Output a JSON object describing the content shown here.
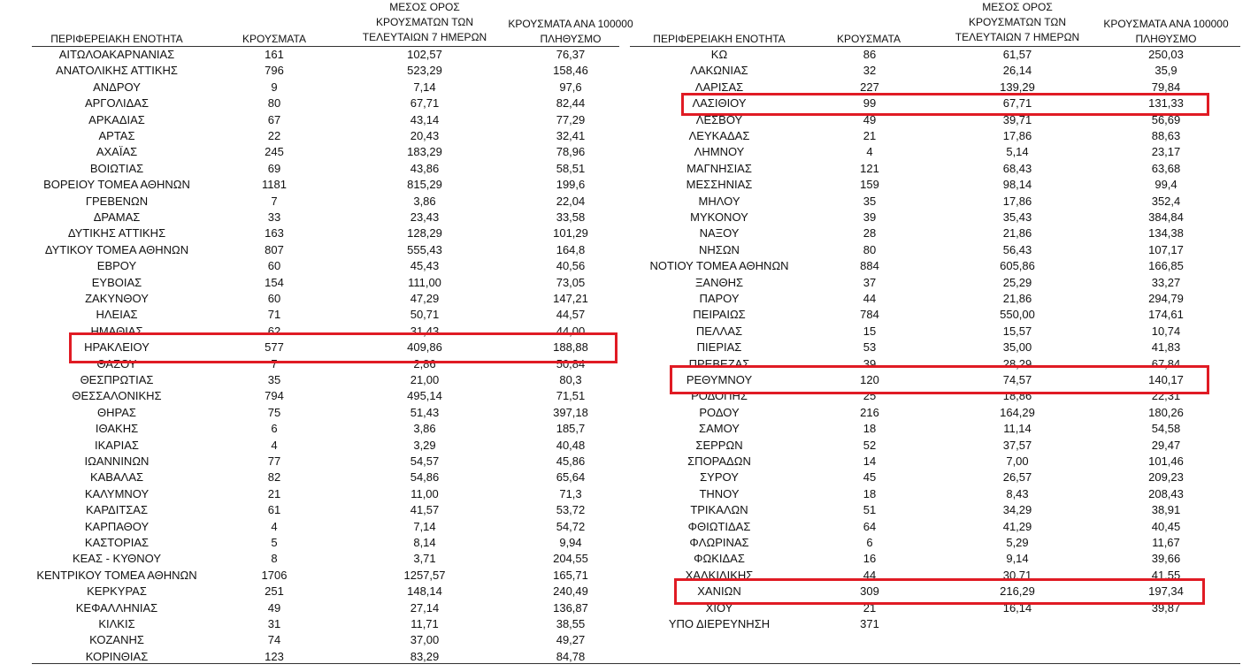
{
  "headers": {
    "region": "ΠΕΡΙΦΕΡΕΙΑΚΗ ΕΝΟΤΗΤΑ",
    "cases": "ΚΡΟΥΣΜΑΤΑ",
    "avg": [
      "ΜΕΣΟΣ ΟΡΟΣ",
      "ΚΡΟΥΣΜΑΤΩΝ ΤΩΝ",
      "ΤΕΛΕΥΤΑΙΩΝ 7 ΗΜΕΡΩΝ"
    ],
    "per100k": [
      "ΚΡΟΥΣΜΑΤΑ ΑΝΑ 100000",
      "ΠΛΗΘΥΣΜΟ"
    ]
  },
  "highlight_color": "#e01b24",
  "highlighted": [
    "ΗΡΑΚΛΕΙΟΥ",
    "ΛΑΣΙΘΙΟΥ",
    "ΡΕΘΥΜΝΟΥ",
    "ΧΑΝΙΩΝ"
  ],
  "left": [
    [
      "ΑΙΤΩΛΟΑΚΑΡΝΑΝΙΑΣ",
      "161",
      "102,57",
      "76,37"
    ],
    [
      "ΑΝΑΤΟΛΙΚΗΣ ΑΤΤΙΚΗΣ",
      "796",
      "523,29",
      "158,46"
    ],
    [
      "ΑΝΔΡΟΥ",
      "9",
      "7,14",
      "97,6"
    ],
    [
      "ΑΡΓΟΛΙΔΑΣ",
      "80",
      "67,71",
      "82,44"
    ],
    [
      "ΑΡΚΑΔΙΑΣ",
      "67",
      "43,14",
      "77,29"
    ],
    [
      "ΑΡΤΑΣ",
      "22",
      "20,43",
      "32,41"
    ],
    [
      "ΑΧΑΪΑΣ",
      "245",
      "183,29",
      "78,96"
    ],
    [
      "ΒΟΙΩΤΙΑΣ",
      "69",
      "43,86",
      "58,51"
    ],
    [
      "ΒΟΡΕΙΟΥ ΤΟΜΕΑ ΑΘΗΝΩΝ",
      "1181",
      "815,29",
      "199,6"
    ],
    [
      "ΓΡΕΒΕΝΩΝ",
      "7",
      "3,86",
      "22,04"
    ],
    [
      "ΔΡΑΜΑΣ",
      "33",
      "23,43",
      "33,58"
    ],
    [
      "ΔΥΤΙΚΗΣ ΑΤΤΙΚΗΣ",
      "163",
      "128,29",
      "101,29"
    ],
    [
      "ΔΥΤΙΚΟΥ ΤΟΜΕΑ ΑΘΗΝΩΝ",
      "807",
      "555,43",
      "164,8"
    ],
    [
      "ΕΒΡΟΥ",
      "60",
      "45,43",
      "40,56"
    ],
    [
      "ΕΥΒΟΙΑΣ",
      "154",
      "111,00",
      "73,05"
    ],
    [
      "ΖΑΚΥΝΘΟΥ",
      "60",
      "47,29",
      "147,21"
    ],
    [
      "ΗΛΕΙΑΣ",
      "71",
      "50,71",
      "44,57"
    ],
    [
      "ΗΜΑΘΙΑΣ",
      "62",
      "31,43",
      "44,00"
    ],
    [
      "ΗΡΑΚΛΕΙΟΥ",
      "577",
      "409,86",
      "188,88"
    ],
    [
      "ΘΑΣΟΥ",
      "7",
      "2,86",
      "50,84"
    ],
    [
      "ΘΕΣΠΡΩΤΙΑΣ",
      "35",
      "21,00",
      "80,3"
    ],
    [
      "ΘΕΣΣΑΛΟΝΙΚΗΣ",
      "794",
      "495,14",
      "71,51"
    ],
    [
      "ΘΗΡΑΣ",
      "75",
      "51,43",
      "397,18"
    ],
    [
      "ΙΘΑΚΗΣ",
      "6",
      "3,86",
      "185,7"
    ],
    [
      "ΙΚΑΡΙΑΣ",
      "4",
      "3,29",
      "40,48"
    ],
    [
      "ΙΩΑΝΝΙΝΩΝ",
      "77",
      "54,57",
      "45,86"
    ],
    [
      "ΚΑΒΑΛΑΣ",
      "82",
      "54,86",
      "65,64"
    ],
    [
      "ΚΑΛΥΜΝΟΥ",
      "21",
      "11,00",
      "71,3"
    ],
    [
      "ΚΑΡΔΙΤΣΑΣ",
      "61",
      "41,57",
      "53,72"
    ],
    [
      "ΚΑΡΠΑΘΟΥ",
      "4",
      "7,14",
      "54,72"
    ],
    [
      "ΚΑΣΤΟΡΙΑΣ",
      "5",
      "8,14",
      "9,94"
    ],
    [
      "ΚΕΑΣ - ΚΥΘΝΟΥ",
      "8",
      "3,71",
      "204,55"
    ],
    [
      "ΚΕΝΤΡΙΚΟΥ ΤΟΜΕΑ ΑΘΗΝΩΝ",
      "1706",
      "1257,57",
      "165,71"
    ],
    [
      "ΚΕΡΚΥΡΑΣ",
      "251",
      "148,14",
      "240,49"
    ],
    [
      "ΚΕΦΑΛΛΗΝΙΑΣ",
      "49",
      "27,14",
      "136,87"
    ],
    [
      "ΚΙΛΚΙΣ",
      "31",
      "11,71",
      "38,55"
    ],
    [
      "ΚΟΖΑΝΗΣ",
      "74",
      "37,00",
      "49,27"
    ],
    [
      "ΚΟΡΙΝΘΙΑΣ",
      "123",
      "83,29",
      "84,78"
    ]
  ],
  "right": [
    [
      "ΚΩ",
      "86",
      "61,57",
      "250,03"
    ],
    [
      "ΛΑΚΩΝΙΑΣ",
      "32",
      "26,14",
      "35,9"
    ],
    [
      "ΛΑΡΙΣΑΣ",
      "227",
      "139,29",
      "79,84"
    ],
    [
      "ΛΑΣΙΘΙΟΥ",
      "99",
      "67,71",
      "131,33"
    ],
    [
      "ΛΕΣΒΟΥ",
      "49",
      "39,71",
      "56,69"
    ],
    [
      "ΛΕΥΚΑΔΑΣ",
      "21",
      "17,86",
      "88,63"
    ],
    [
      "ΛΗΜΝΟΥ",
      "4",
      "5,14",
      "23,17"
    ],
    [
      "ΜΑΓΝΗΣΙΑΣ",
      "121",
      "68,43",
      "63,68"
    ],
    [
      "ΜΕΣΣΗΝΙΑΣ",
      "159",
      "98,14",
      "99,4"
    ],
    [
      "ΜΗΛΟΥ",
      "35",
      "17,86",
      "352,4"
    ],
    [
      "ΜΥΚΟΝΟΥ",
      "39",
      "35,43",
      "384,84"
    ],
    [
      "ΝΑΞΟΥ",
      "28",
      "21,86",
      "134,38"
    ],
    [
      "ΝΗΣΩΝ",
      "80",
      "56,43",
      "107,17"
    ],
    [
      "ΝΟΤΙΟΥ ΤΟΜΕΑ ΑΘΗΝΩΝ",
      "884",
      "605,86",
      "166,85"
    ],
    [
      "ΞΑΝΘΗΣ",
      "37",
      "25,29",
      "33,27"
    ],
    [
      "ΠΑΡΟΥ",
      "44",
      "21,86",
      "294,79"
    ],
    [
      "ΠΕΙΡΑΙΩΣ",
      "784",
      "550,00",
      "174,61"
    ],
    [
      "ΠΕΛΛΑΣ",
      "15",
      "15,57",
      "10,74"
    ],
    [
      "ΠΙΕΡΙΑΣ",
      "53",
      "35,00",
      "41,83"
    ],
    [
      "ΠΡΕΒΕΖΑΣ",
      "39",
      "28,29",
      "67,84"
    ],
    [
      "ΡΕΘΥΜΝΟΥ",
      "120",
      "74,57",
      "140,17"
    ],
    [
      "ΡΟΔΟΠΗΣ",
      "25",
      "18,86",
      "22,31"
    ],
    [
      "ΡΟΔΟΥ",
      "216",
      "164,29",
      "180,26"
    ],
    [
      "ΣΑΜΟΥ",
      "18",
      "11,14",
      "54,58"
    ],
    [
      "ΣΕΡΡΩΝ",
      "52",
      "37,57",
      "29,47"
    ],
    [
      "ΣΠΟΡΑΔΩΝ",
      "14",
      "7,00",
      "101,46"
    ],
    [
      "ΣΥΡΟΥ",
      "45",
      "26,57",
      "209,23"
    ],
    [
      "ΤΗΝΟΥ",
      "18",
      "8,43",
      "208,43"
    ],
    [
      "ΤΡΙΚΑΛΩΝ",
      "51",
      "34,29",
      "38,91"
    ],
    [
      "ΦΘΙΩΤΙΔΑΣ",
      "64",
      "41,29",
      "40,45"
    ],
    [
      "ΦΛΩΡΙΝΑΣ",
      "6",
      "5,29",
      "11,67"
    ],
    [
      "ΦΩΚΙΔΑΣ",
      "16",
      "9,14",
      "39,66"
    ],
    [
      "ΧΑΛΚΙΔΙΚΗΣ",
      "44",
      "30,71",
      "41,55"
    ],
    [
      "ΧΑΝΙΩΝ",
      "309",
      "216,29",
      "197,34"
    ],
    [
      "ΧΙΟΥ",
      "21",
      "16,14",
      "39,87"
    ],
    [
      "ΥΠΟ ΔΙΕΡΕΥΝΗΣΗ",
      "371",
      "",
      ""
    ]
  ]
}
